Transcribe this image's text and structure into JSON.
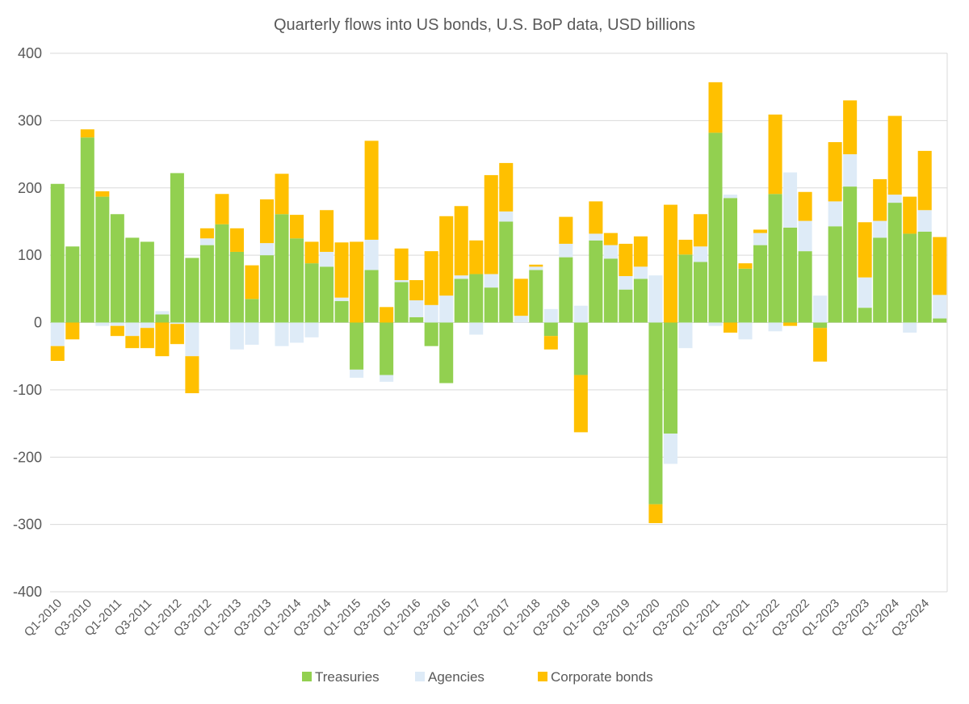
{
  "chart_data": {
    "type": "bar",
    "stacked": true,
    "title": "Quarterly flows into US bonds, U.S. BoP data, USD billions",
    "xlabel": "",
    "ylabel": "",
    "ylim": [
      -400,
      400
    ],
    "yticks": [
      400,
      300,
      200,
      100,
      0,
      -100,
      -200,
      -300,
      -400
    ],
    "ytick_labels": [
      "400",
      "300",
      "200",
      "100",
      "0",
      "-100",
      "-200",
      "-300",
      "-400"
    ],
    "grid": true,
    "legend_position": "bottom",
    "categories": [
      "Q1-2010",
      "Q2-2010",
      "Q3-2010",
      "Q4-2010",
      "Q1-2011",
      "Q2-2011",
      "Q3-2011",
      "Q4-2011",
      "Q1-2012",
      "Q2-2012",
      "Q3-2012",
      "Q4-2012",
      "Q1-2013",
      "Q2-2013",
      "Q3-2013",
      "Q4-2013",
      "Q1-2014",
      "Q2-2014",
      "Q3-2014",
      "Q4-2014",
      "Q1-2015",
      "Q2-2015",
      "Q3-2015",
      "Q4-2015",
      "Q1-2016",
      "Q2-2016",
      "Q3-2016",
      "Q4-2016",
      "Q1-2017",
      "Q2-2017",
      "Q3-2017",
      "Q4-2017",
      "Q1-2018",
      "Q2-2018",
      "Q3-2018",
      "Q4-2018",
      "Q1-2019",
      "Q2-2019",
      "Q3-2019",
      "Q4-2019",
      "Q1-2020",
      "Q2-2020",
      "Q3-2020",
      "Q4-2020",
      "Q1-2021",
      "Q2-2021",
      "Q3-2021",
      "Q4-2021",
      "Q1-2022",
      "Q2-2022",
      "Q3-2022",
      "Q4-2022",
      "Q1-2023",
      "Q2-2023",
      "Q3-2023",
      "Q4-2023",
      "Q1-2024",
      "Q2-2024",
      "Q3-2024",
      "Q4-2024"
    ],
    "visible_tick_labels": [
      "Q1-2010",
      "Q3-2010",
      "Q1-2011",
      "Q3-2011",
      "Q1-2012",
      "Q3-2012",
      "Q1-2013",
      "Q3-2013",
      "Q1-2014",
      "Q3-2014",
      "Q1-2015",
      "Q3-2015",
      "Q1-2016",
      "Q3-2016",
      "Q1-2017",
      "Q3-2017",
      "Q1-2018",
      "Q3-2018",
      "Q1-2019",
      "Q3-2019",
      "Q1-2020",
      "Q3-2020",
      "Q1-2021",
      "Q3-2021",
      "Q1-2022",
      "Q3-2022",
      "Q1-2023",
      "Q3-2023",
      "Q1-2024",
      "Q3-2024"
    ],
    "series": [
      {
        "name": "Treasuries",
        "color": "#92d050",
        "values": [
          206,
          113,
          275,
          187,
          161,
          126,
          120,
          12,
          222,
          96,
          115,
          146,
          105,
          35,
          100,
          161,
          125,
          88,
          83,
          32,
          -70,
          78,
          -78,
          60,
          8,
          -35,
          -90,
          65,
          72,
          52,
          150,
          0,
          78,
          -20,
          97,
          -78,
          122,
          95,
          49,
          65,
          -270,
          -165,
          101,
          90,
          282,
          185,
          80,
          115,
          191,
          141,
          106,
          -8,
          143,
          202,
          22,
          126,
          178,
          132,
          135,
          6
        ]
      },
      {
        "name": "Agencies",
        "color": "#deebf7",
        "values": [
          -35,
          0,
          0,
          -5,
          -5,
          -20,
          -8,
          5,
          -2,
          -50,
          10,
          0,
          -40,
          -33,
          18,
          -35,
          -30,
          -22,
          22,
          5,
          -12,
          45,
          -10,
          3,
          25,
          26,
          40,
          5,
          -18,
          20,
          15,
          10,
          5,
          20,
          20,
          25,
          10,
          20,
          20,
          18,
          70,
          -45,
          -38,
          23,
          -5,
          5,
          -25,
          18,
          -13,
          82,
          45,
          40,
          37,
          48,
          45,
          25,
          12,
          -15,
          32,
          35
        ]
      },
      {
        "name": "Corporate bonds",
        "color": "#ffc000",
        "values": [
          -22,
          -25,
          12,
          8,
          -15,
          -18,
          -30,
          -50,
          -30,
          -55,
          15,
          45,
          35,
          50,
          65,
          60,
          35,
          32,
          62,
          82,
          120,
          147,
          23,
          47,
          30,
          80,
          118,
          103,
          50,
          147,
          72,
          55,
          3,
          -20,
          40,
          -85,
          48,
          18,
          48,
          45,
          -28,
          175,
          22,
          48,
          75,
          -15,
          8,
          5,
          118,
          -5,
          43,
          -50,
          88,
          80,
          82,
          62,
          117,
          55,
          88,
          86
        ]
      }
    ]
  }
}
